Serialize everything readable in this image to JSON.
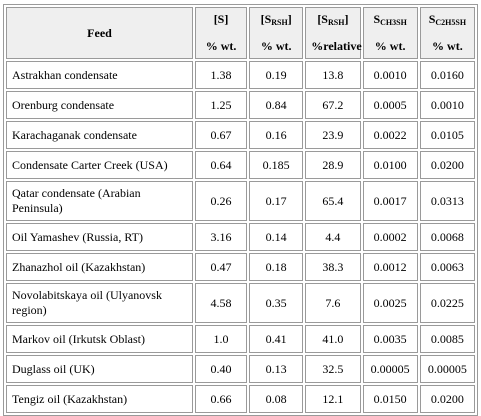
{
  "table": {
    "header": [
      {
        "text": "Feed"
      },
      {
        "text": "[S]",
        "unit": "% wt."
      },
      {
        "text": "[S",
        "sub": "RSH",
        "tail": "]",
        "unit": "% wt."
      },
      {
        "text": "[S",
        "sub": "RSH",
        "tail": "]",
        "unit": "%relative"
      },
      {
        "text": "S",
        "sub": "CH3SH",
        "unit": "% wt."
      },
      {
        "text": "S",
        "sub": "C2H5SH",
        "unit": "% wt."
      }
    ],
    "rows": [
      [
        "Astrakhan condensate",
        "1.38",
        "0.19",
        "13.8",
        "0.0010",
        "0.0160"
      ],
      [
        "Orenburg condensate",
        "1.25",
        "0.84",
        "67.2",
        "0.0005",
        "0.0010"
      ],
      [
        "Karachaganak condensate",
        "0.67",
        "0.16",
        "23.9",
        "0.0022",
        "0.0105"
      ],
      [
        "Condensate Carter Creek (USA)",
        "0.64",
        "0.185",
        "28.9",
        "0.0100",
        "0.0200"
      ],
      [
        "Qatar condensate (Arabian Peninsula)",
        "0.26",
        "0.17",
        "65.4",
        "0.0017",
        "0.0313"
      ],
      [
        "Oil Yamashev (Russia, RT)",
        "3.16",
        "0.14",
        "4.4",
        "0.0002",
        "0.0068"
      ],
      [
        "Zhanazhol oil (Kazakhstan)",
        "0.47",
        "0.18",
        "38.3",
        "0.0012",
        "0.0063"
      ],
      [
        "Novolabitskaya oil (Ulyanovsk region)",
        "4.58",
        "0.35",
        "7.6",
        "0.0025",
        "0.0225"
      ],
      [
        "Markov oil (Irkutsk Oblast)",
        "1.0",
        "0.41",
        "41.0",
        "0.0035",
        "0.0085"
      ],
      [
        "Duglass oil (UK)",
        "0.40",
        "0.13",
        "32.5",
        "0.00005",
        "0.00005"
      ],
      [
        "Tengiz oil (Kazakhstan)",
        "0.66",
        "0.08",
        "12.1",
        "0.0150",
        "0.0200"
      ]
    ]
  }
}
